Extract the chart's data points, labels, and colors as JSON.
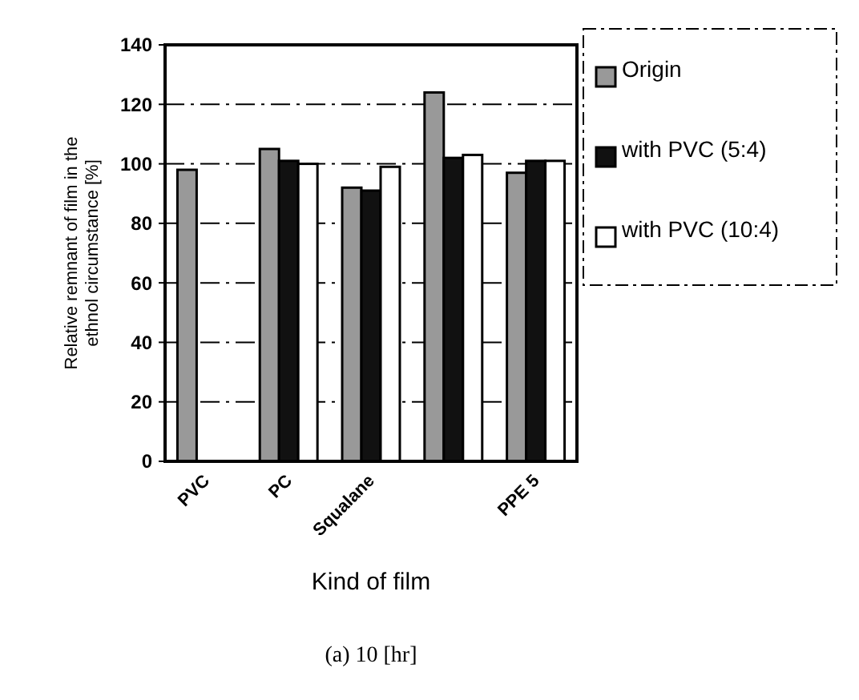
{
  "chart_data": {
    "type": "bar",
    "xlabel": "Kind of film",
    "ylabel": "Relative remnant of film in the ethnol circumstance [%]",
    "annotations": [
      "(a) 10 [hr]"
    ],
    "categories": [
      "PVC",
      "PC",
      "Squalane",
      null,
      "PPE 5"
    ],
    "series": [
      {
        "name": "Origin",
        "color": "#999999",
        "values": [
          98,
          105,
          92,
          124,
          97
        ]
      },
      {
        "name": "with PVC (5:4)",
        "color": "#111111",
        "values": [
          null,
          101,
          91,
          102,
          101
        ]
      },
      {
        "name": "with PVC (10:4)",
        "color": "#ffffff",
        "values": [
          null,
          100,
          99,
          103,
          101
        ]
      }
    ],
    "ylim": [
      0,
      140
    ],
    "yticks": [
      0,
      20,
      40,
      60,
      80,
      100,
      120,
      140
    ],
    "grid": "y",
    "legend": "right"
  }
}
